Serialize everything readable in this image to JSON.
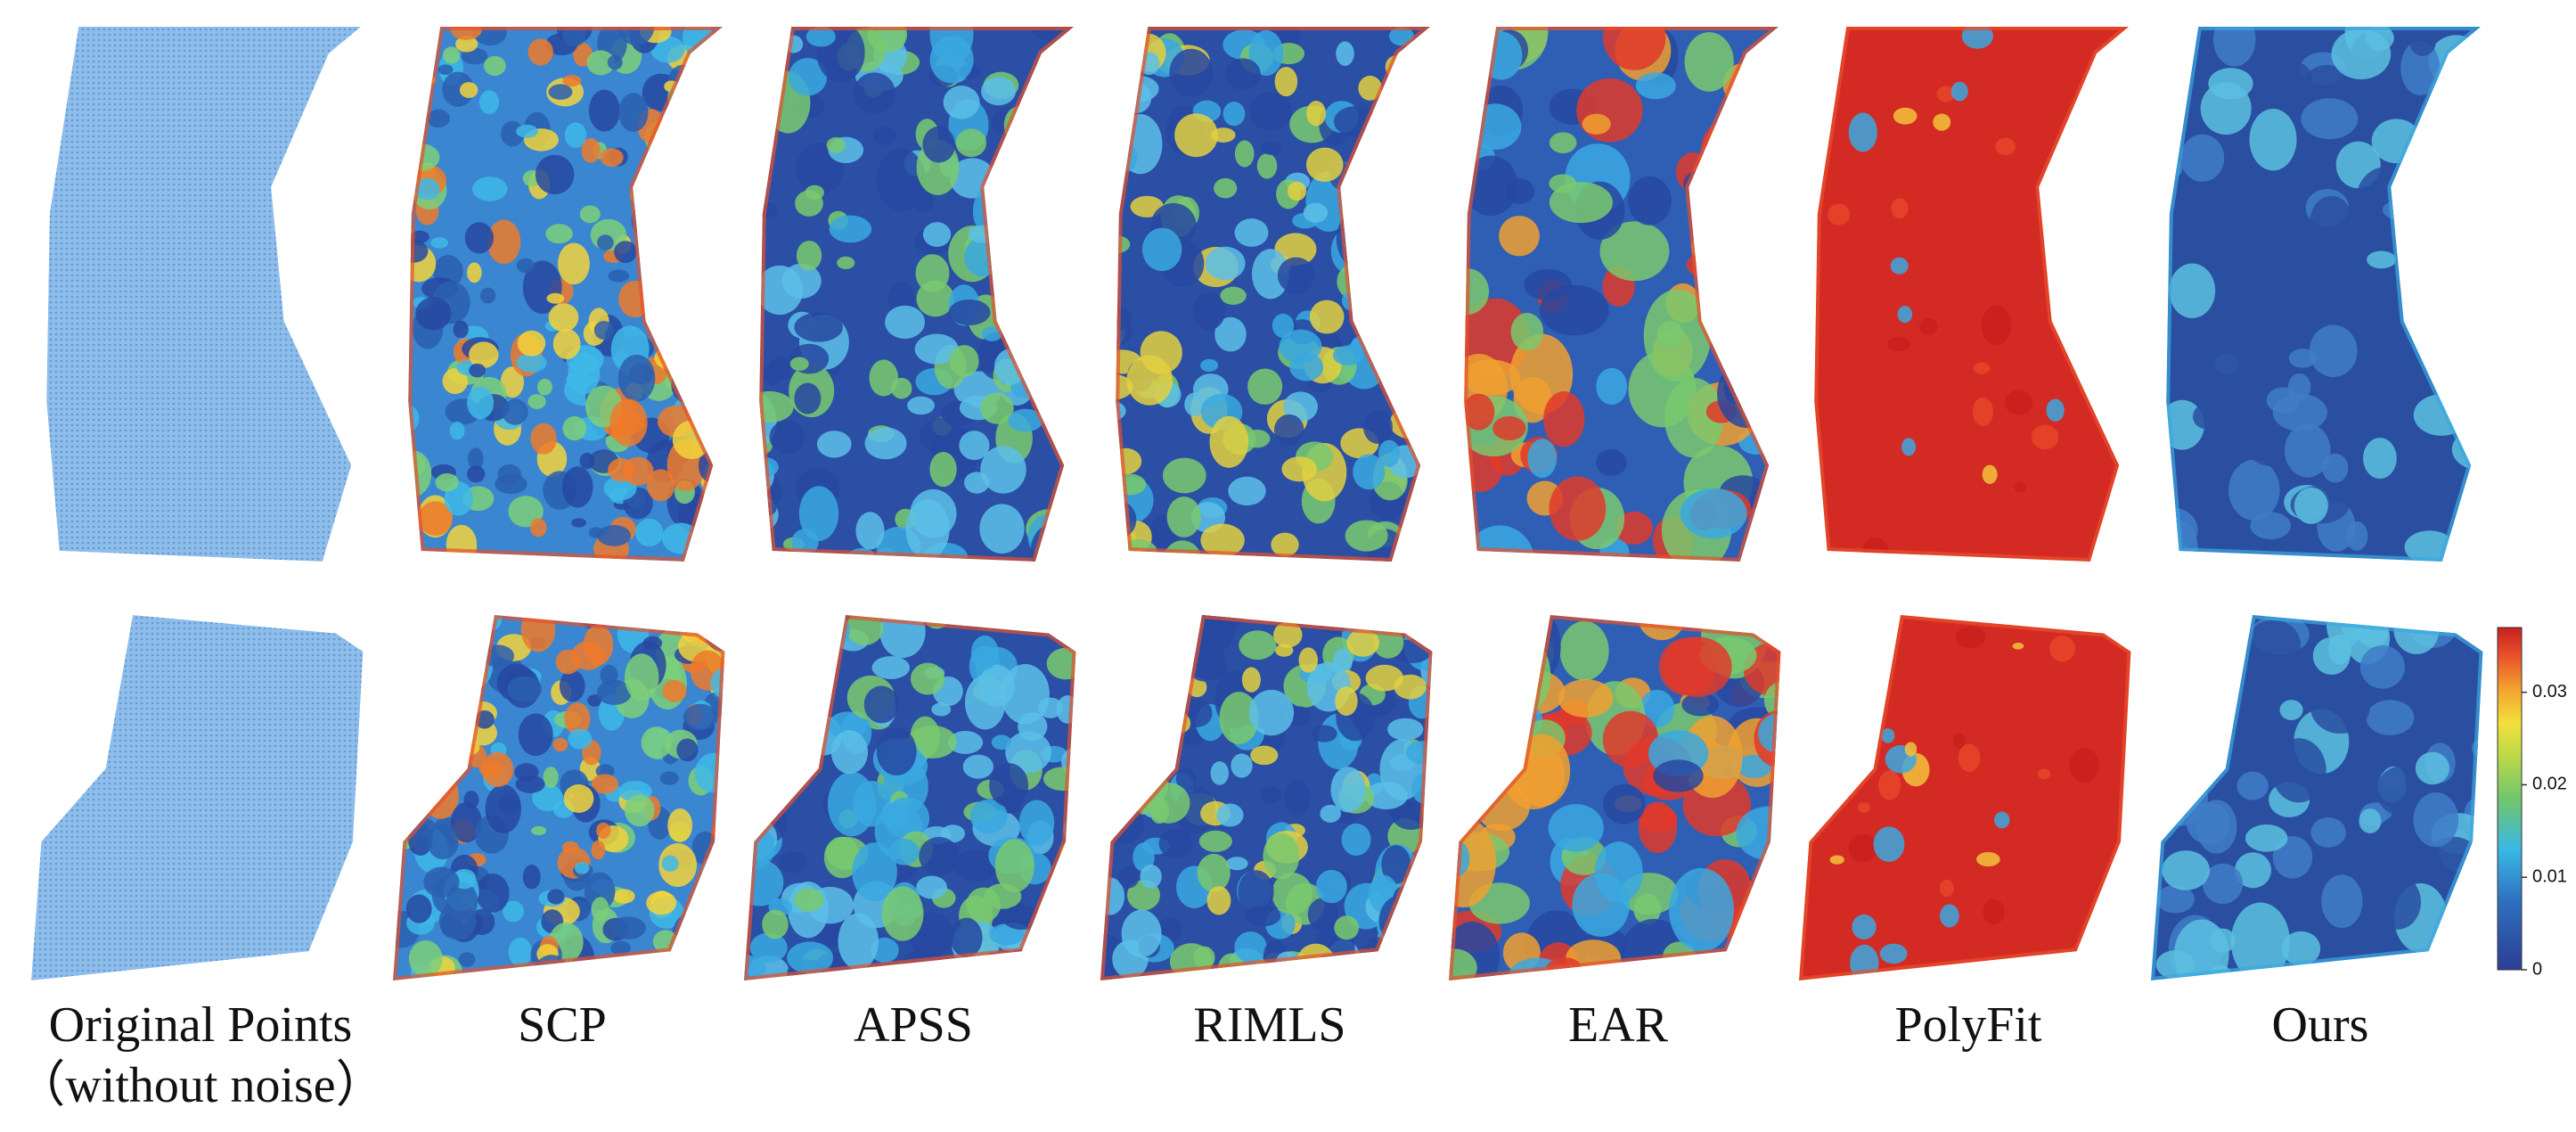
{
  "columns": [
    {
      "label": "Original Points",
      "sublabel": "（without noise）"
    },
    {
      "label": "SCP"
    },
    {
      "label": "APSS"
    },
    {
      "label": "RIMLS"
    },
    {
      "label": "EAR"
    },
    {
      "label": "PolyFit"
    },
    {
      "label": "Ours"
    }
  ],
  "colorbar": {
    "lim": [
      0,
      0.037
    ],
    "ticks": [
      0,
      0.01,
      0.02,
      0.03
    ]
  }
}
